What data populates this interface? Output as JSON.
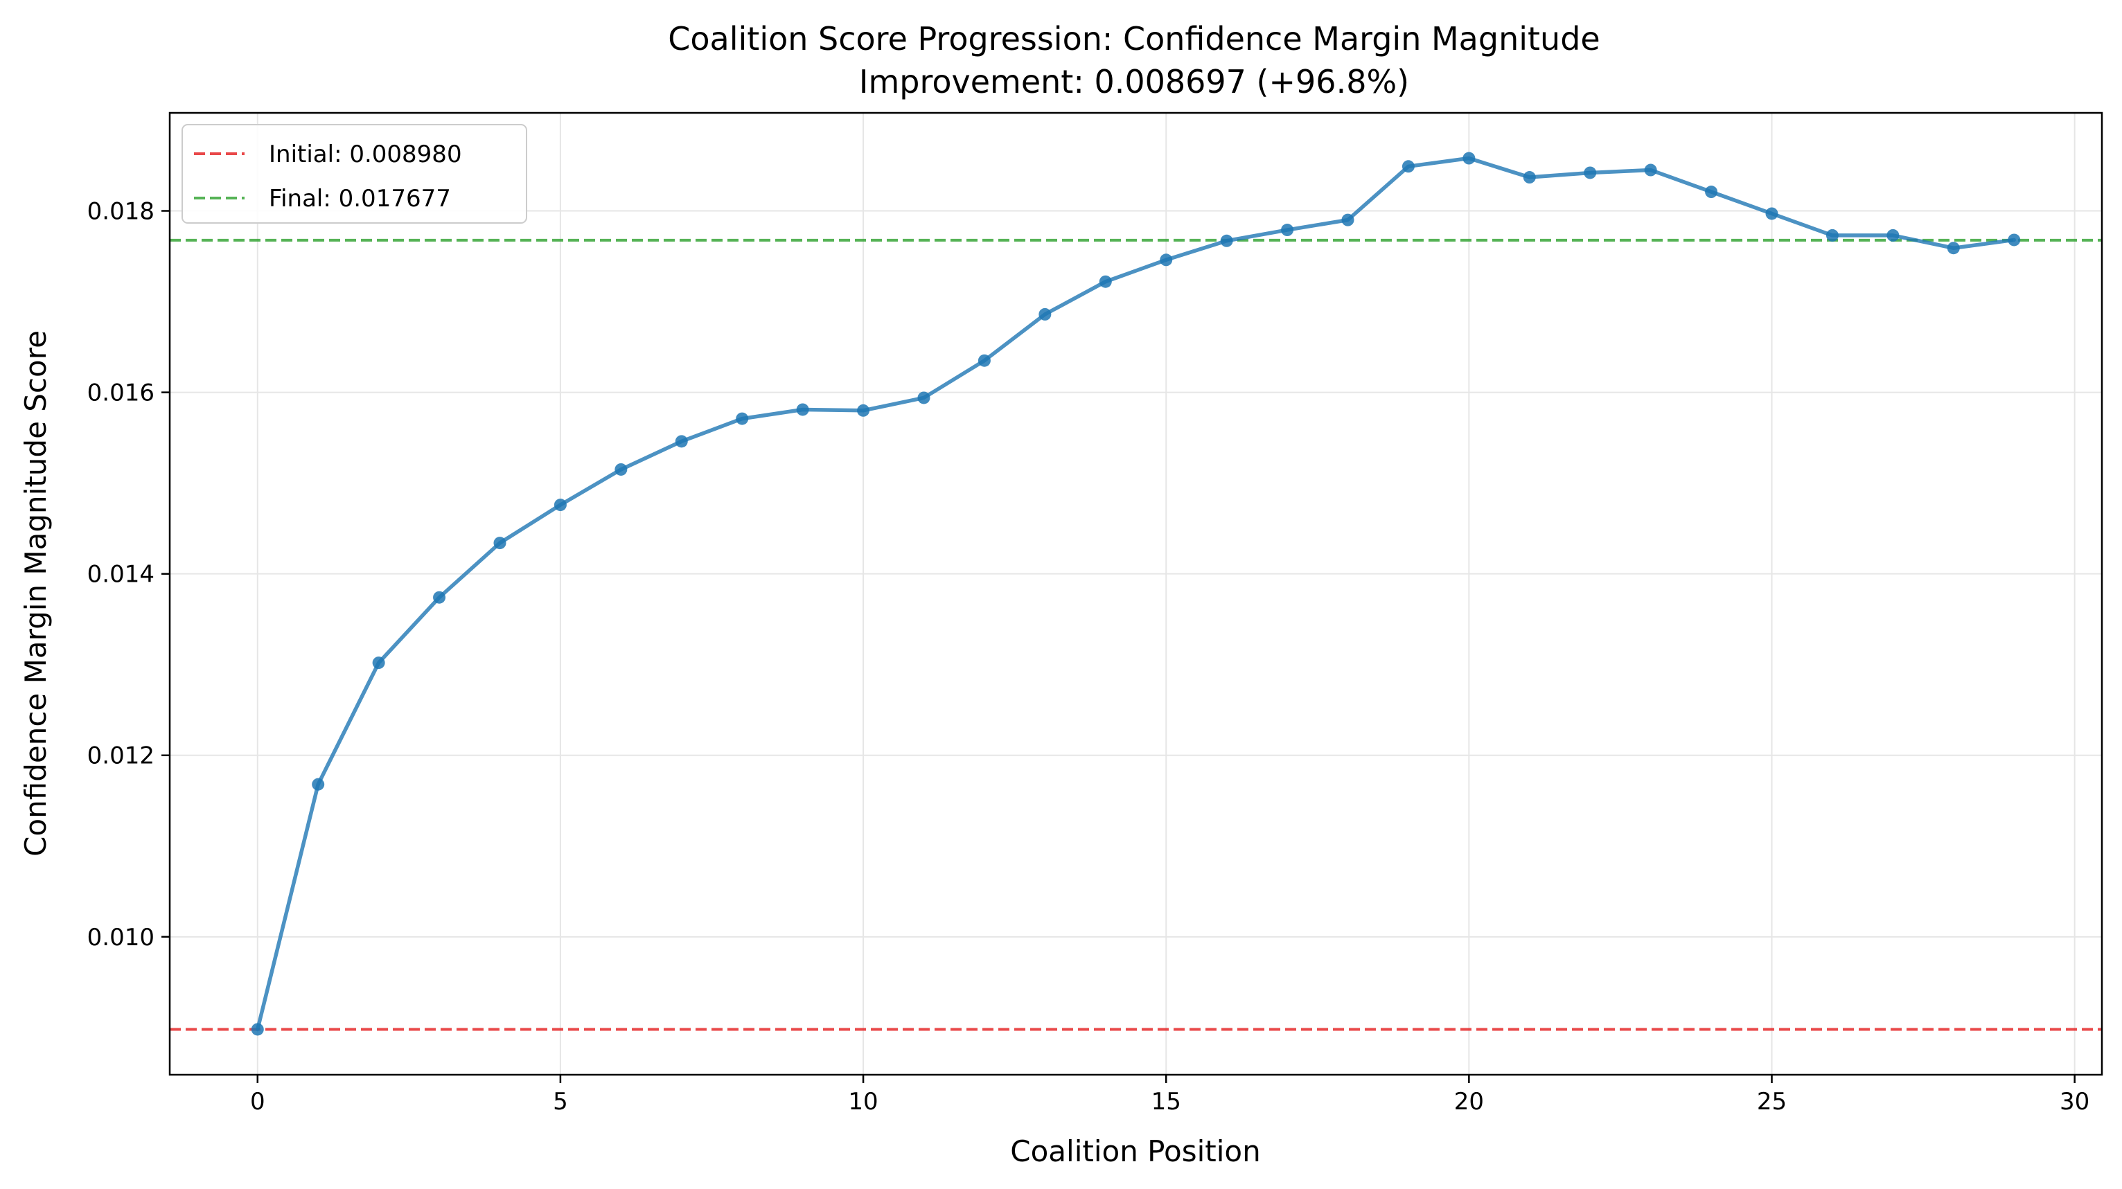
{
  "chart_data": {
    "type": "line",
    "title": "Coalition Score Progression: Confidence Margin Magnitude",
    "subtitle": "Improvement: 0.008697 (+96.8%)",
    "xlabel": "Coalition Position",
    "ylabel": "Confidence Margin Magnitude Score",
    "xlim": [
      -1.45,
      30.45
    ],
    "ylim": [
      0.00848,
      0.01908
    ],
    "xticks": [
      0,
      5,
      10,
      15,
      20,
      25,
      30
    ],
    "xtick_labels": [
      "0",
      "5",
      "10",
      "15",
      "20",
      "25",
      "30"
    ],
    "yticks": [
      0.01,
      0.012,
      0.014,
      0.016,
      0.018
    ],
    "ytick_labels": [
      "0.010",
      "0.012",
      "0.014",
      "0.016",
      "0.018"
    ],
    "grid": true,
    "legend_position": "top-left",
    "series": [
      {
        "color": "#1f77b4",
        "x": [
          0,
          1,
          2,
          3,
          4,
          5,
          6,
          7,
          8,
          9,
          10,
          11,
          12,
          13,
          14,
          15,
          16,
          17,
          18,
          19,
          20,
          21,
          22,
          23,
          24,
          25,
          26,
          27,
          28,
          29
        ],
        "y": [
          0.00898,
          0.01168,
          0.01302,
          0.01374,
          0.01434,
          0.01476,
          0.01515,
          0.01546,
          0.01571,
          0.01581,
          0.0158,
          0.01594,
          0.01635,
          0.01686,
          0.01722,
          0.01746,
          0.01767,
          0.01779,
          0.0179,
          0.01849,
          0.01858,
          0.01837,
          0.01842,
          0.01845,
          0.01821,
          0.01797,
          0.01773,
          0.01773,
          0.01759,
          0.01768
        ]
      }
    ],
    "reference_lines": [
      {
        "label": "Initial: 0.008980",
        "y": 0.00898,
        "color": "#e41a1c"
      },
      {
        "label": "Final: 0.017677",
        "y": 0.017677,
        "color": "#2ca02c"
      }
    ]
  }
}
